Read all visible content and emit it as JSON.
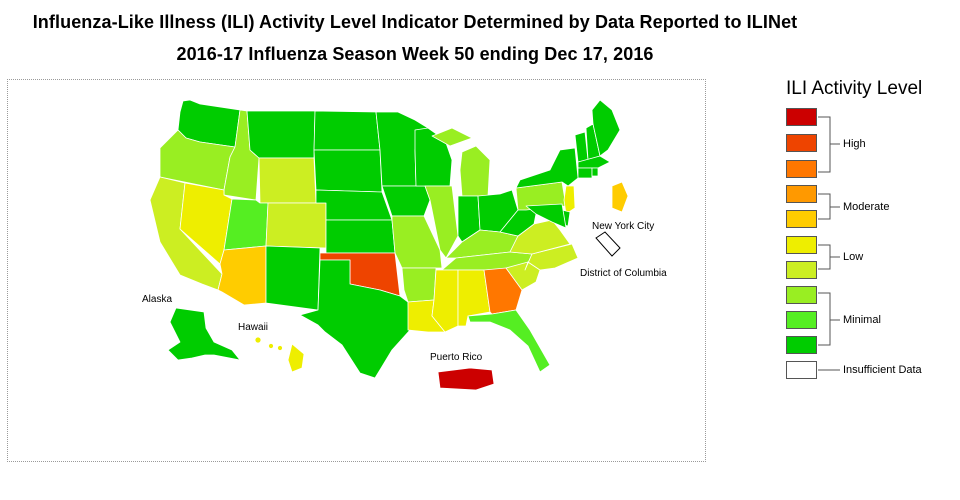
{
  "title_line1": "Influenza-Like Illness (ILI) Activity Level Indicator Determined by Data Reported to ILINet",
  "title_line2": "2016-17 Influenza Season Week 50 ending Dec 17, 2016",
  "colors": {
    "level_10": "#cc0000",
    "level_9": "#ee4400",
    "level_8": "#ff7700",
    "level_7": "#ff9900",
    "level_6": "#ffcc00",
    "level_5": "#eeee00",
    "level_4": "#ccee22",
    "level_3": "#99ee22",
    "level_2": "#55ee22",
    "level_1": "#00cc00",
    "insufficient": "#ffffff"
  },
  "legend": {
    "title": "ILI Activity Level",
    "groups": {
      "high": "High",
      "moderate": "Moderate",
      "low": "Low",
      "minimal": "Minimal",
      "insufficient": "Insufficient Data"
    }
  },
  "map_labels": {
    "alaska": "Alaska",
    "hawaii": "Hawaii",
    "puerto_rico": "Puerto Rico",
    "new_york_city": "New York City",
    "district_of_columbia": "District of Columbia"
  },
  "jurisdictions": [
    {
      "name": "Washington",
      "level": 1
    },
    {
      "name": "Oregon",
      "level": 3
    },
    {
      "name": "California",
      "level": 4
    },
    {
      "name": "Idaho",
      "level": 3
    },
    {
      "name": "Nevada",
      "level": 5
    },
    {
      "name": "Montana",
      "level": 1
    },
    {
      "name": "Wyoming",
      "level": 4
    },
    {
      "name": "Utah",
      "level": 2
    },
    {
      "name": "Colorado",
      "level": 4
    },
    {
      "name": "Arizona",
      "level": 6
    },
    {
      "name": "New Mexico",
      "level": 1
    },
    {
      "name": "North Dakota",
      "level": 1
    },
    {
      "name": "South Dakota",
      "level": 1
    },
    {
      "name": "Nebraska",
      "level": 1
    },
    {
      "name": "Kansas",
      "level": 1
    },
    {
      "name": "Oklahoma",
      "level": 9
    },
    {
      "name": "Texas",
      "level": 1
    },
    {
      "name": "Minnesota",
      "level": 1
    },
    {
      "name": "Iowa",
      "level": 1
    },
    {
      "name": "Missouri",
      "level": 3
    },
    {
      "name": "Arkansas",
      "level": 3
    },
    {
      "name": "Louisiana",
      "level": 5
    },
    {
      "name": "Wisconsin",
      "level": 1
    },
    {
      "name": "Illinois",
      "level": 3
    },
    {
      "name": "Michigan",
      "level": 3
    },
    {
      "name": "Indiana",
      "level": 1
    },
    {
      "name": "Ohio",
      "level": 1
    },
    {
      "name": "Kentucky",
      "level": 3
    },
    {
      "name": "Tennessee",
      "level": 3
    },
    {
      "name": "Mississippi",
      "level": 5
    },
    {
      "name": "Alabama",
      "level": 5
    },
    {
      "name": "Georgia",
      "level": 8
    },
    {
      "name": "Florida",
      "level": 2
    },
    {
      "name": "South Carolina",
      "level": 4
    },
    {
      "name": "North Carolina",
      "level": 4
    },
    {
      "name": "Virginia",
      "level": 4
    },
    {
      "name": "West Virginia",
      "level": 1
    },
    {
      "name": "Pennsylvania",
      "level": 3
    },
    {
      "name": "New York",
      "level": 1
    },
    {
      "name": "New Jersey",
      "level": 5
    },
    {
      "name": "Delaware",
      "level": 1
    },
    {
      "name": "Maryland",
      "level": 1
    },
    {
      "name": "Vermont",
      "level": 1
    },
    {
      "name": "New Hampshire",
      "level": 1
    },
    {
      "name": "Maine",
      "level": 1
    },
    {
      "name": "Massachusetts",
      "level": 1
    },
    {
      "name": "Connecticut",
      "level": 1
    },
    {
      "name": "Rhode Island",
      "level": 1
    },
    {
      "name": "Alaska",
      "level": 1
    },
    {
      "name": "Hawaii",
      "level": 5
    },
    {
      "name": "Puerto Rico",
      "level": 10
    },
    {
      "name": "New York City",
      "level": 6
    },
    {
      "name": "District of Columbia",
      "level": 0
    }
  ]
}
